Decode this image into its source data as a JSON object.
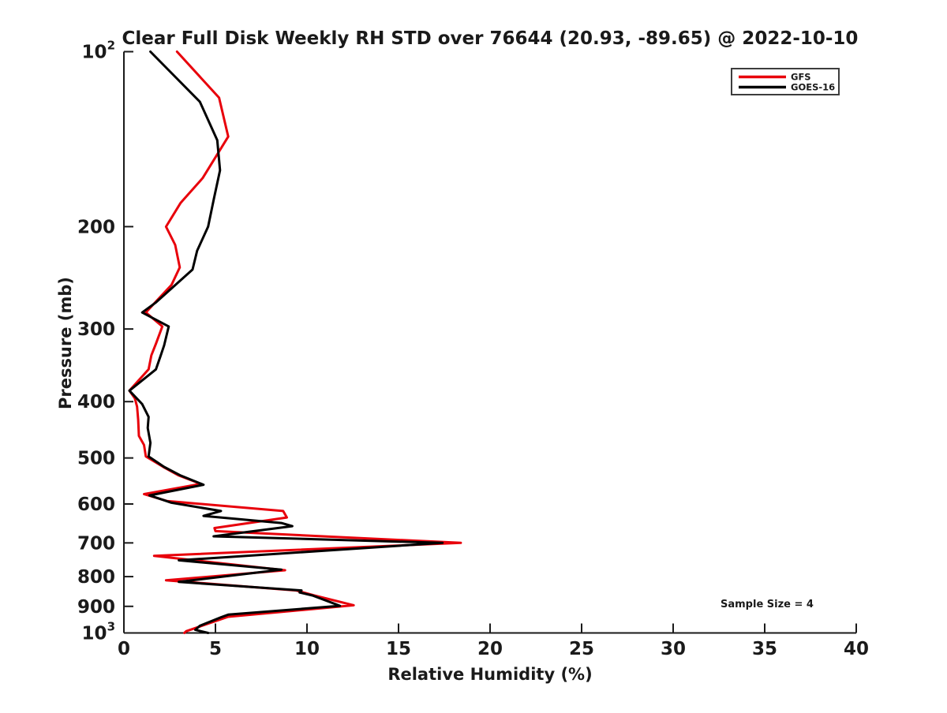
{
  "title": "Clear Full Disk Weekly RH STD over 76644 (20.93, -89.65) @ 2022-10-10",
  "annotation": "Sample Size = 4",
  "axes": {
    "x": {
      "label": "Relative Humidity (%)",
      "ticks": [
        0,
        5,
        10,
        15,
        20,
        25,
        30,
        35,
        40
      ],
      "range": [
        0,
        40
      ]
    },
    "y": {
      "label": "Pressure (mb)",
      "scale": "log",
      "tick_values": [
        100,
        200,
        300,
        400,
        500,
        600,
        700,
        800,
        900,
        1000
      ],
      "tick_labels": [
        "10^2",
        "200",
        "300",
        "400",
        "500",
        "600",
        "700",
        "800",
        "900",
        "10^3"
      ],
      "range": [
        100,
        1000
      ],
      "direction": "reversed (pressure increases downward)"
    }
  },
  "legend": {
    "position": "top-right",
    "items": [
      {
        "label": "GFS",
        "color": "#e8000b"
      },
      {
        "label": "GOES-16",
        "color": "#000000"
      }
    ]
  },
  "colors": {
    "axis": "#1a1a1a",
    "background": "#ffffff",
    "gfs_red": "#e8000b",
    "goes_black": "#000000"
  },
  "chart_data": {
    "type": "line",
    "title": "Clear Full Disk Weekly RH STD over 76644 (20.93, -89.65) @ 2022-10-10",
    "xlabel": "Relative Humidity (%)",
    "ylabel": "Pressure (mb)",
    "xlim": [
      0,
      40
    ],
    "ylim_log": [
      100,
      1000
    ],
    "grid": false,
    "legend_position": "top-right",
    "annotation": "Sample Size = 4",
    "series": [
      {
        "name": "GFS",
        "color": "#e8000b",
        "points_pressure_rh": [
          [
            100,
            2.9
          ],
          [
            120,
            5.2
          ],
          [
            140,
            5.7
          ],
          [
            165,
            4.3
          ],
          [
            182,
            3.1
          ],
          [
            200,
            2.3
          ],
          [
            215,
            2.8
          ],
          [
            235,
            3.05
          ],
          [
            252,
            2.6
          ],
          [
            265,
            1.95
          ],
          [
            281,
            1.2
          ],
          [
            297,
            2.1
          ],
          [
            318,
            1.75
          ],
          [
            333,
            1.5
          ],
          [
            352,
            1.35
          ],
          [
            383,
            0.3
          ],
          [
            395,
            0.6
          ],
          [
            408,
            0.72
          ],
          [
            430,
            0.78
          ],
          [
            458,
            0.82
          ],
          [
            475,
            1.1
          ],
          [
            497,
            1.2
          ],
          [
            518,
            2.15
          ],
          [
            536,
            3.0
          ],
          [
            554,
            4.2
          ],
          [
            577,
            1.1
          ],
          [
            593,
            2.35
          ],
          [
            617,
            8.7
          ],
          [
            633,
            8.9
          ],
          [
            660,
            4.95
          ],
          [
            668,
            5.0
          ],
          [
            700,
            18.4
          ],
          [
            737,
            1.65
          ],
          [
            780,
            8.8
          ],
          [
            812,
            2.3
          ],
          [
            845,
            9.4
          ],
          [
            862,
            10.4
          ],
          [
            896,
            12.55
          ],
          [
            938,
            5.7
          ],
          [
            993,
            3.4
          ],
          [
            1000,
            3.3
          ]
        ]
      },
      {
        "name": "GOES-16",
        "color": "#000000",
        "points_pressure_rh": [
          [
            100,
            1.45
          ],
          [
            122,
            4.15
          ],
          [
            142,
            5.1
          ],
          [
            160,
            5.25
          ],
          [
            180,
            4.9
          ],
          [
            200,
            4.6
          ],
          [
            220,
            4.0
          ],
          [
            237,
            3.75
          ],
          [
            270,
            1.75
          ],
          [
            281,
            1.0
          ],
          [
            297,
            2.45
          ],
          [
            320,
            2.2
          ],
          [
            334,
            2.0
          ],
          [
            352,
            1.75
          ],
          [
            383,
            0.3
          ],
          [
            404,
            1.0
          ],
          [
            425,
            1.35
          ],
          [
            444,
            1.3
          ],
          [
            471,
            1.45
          ],
          [
            497,
            1.35
          ],
          [
            518,
            2.2
          ],
          [
            536,
            3.1
          ],
          [
            556,
            4.35
          ],
          [
            580,
            1.4
          ],
          [
            597,
            2.6
          ],
          [
            617,
            5.3
          ],
          [
            629,
            4.35
          ],
          [
            647,
            8.6
          ],
          [
            655,
            9.2
          ],
          [
            682,
            4.9
          ],
          [
            700,
            17.4
          ],
          [
            750,
            3.0
          ],
          [
            778,
            8.6
          ],
          [
            817,
            3.0
          ],
          [
            845,
            9.7
          ],
          [
            852,
            9.6
          ],
          [
            862,
            10.3
          ],
          [
            898,
            11.8
          ],
          [
            930,
            5.7
          ],
          [
            940,
            5.3
          ],
          [
            972,
            4.15
          ],
          [
            988,
            3.9
          ],
          [
            1000,
            4.6
          ]
        ]
      }
    ]
  }
}
